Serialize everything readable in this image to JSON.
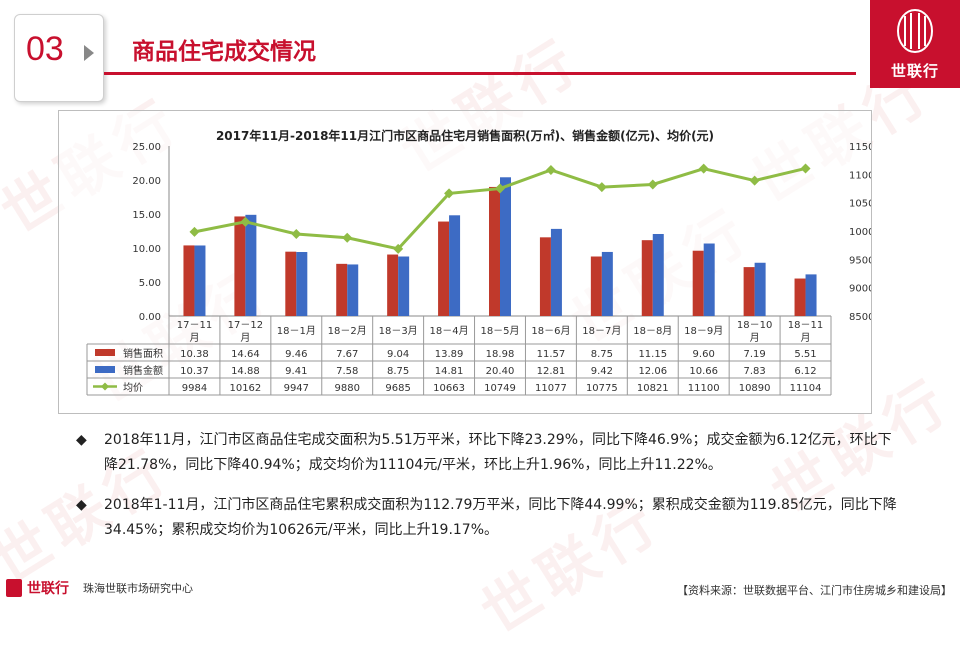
{
  "header": {
    "section_number": "03",
    "title": "商品住宅成交情况",
    "brand": "世联行",
    "watermark": "世联行"
  },
  "chart_data": {
    "type": "bar",
    "title": "2017年11月-2018年11月江门市区商品住宅月销售面积(万㎡)、销售金额(亿元)、均价(元)",
    "categories": [
      "17－11\n月",
      "17－12\n月",
      "18－1月",
      "18－2月",
      "18－3月",
      "18－4月",
      "18－5月",
      "18－6月",
      "18－7月",
      "18－8月",
      "18－9月",
      "18－10\n月",
      "18－11\n月"
    ],
    "ylim": [
      0,
      25
    ],
    "y2lim": [
      8500,
      11500
    ],
    "yticks": [
      "0.00",
      "5.00",
      "10.00",
      "15.00",
      "20.00",
      "25.00"
    ],
    "y2ticks": [
      "8500",
      "9000",
      "9500",
      "10000",
      "10500",
      "11000",
      "11500"
    ],
    "grid": false,
    "series": [
      {
        "name": "销售面积",
        "type": "bar",
        "axis": "left",
        "color": "#c0392b",
        "values": [
          10.38,
          14.64,
          9.46,
          7.67,
          9.04,
          13.89,
          18.98,
          11.57,
          8.75,
          11.15,
          9.6,
          7.19,
          5.51
        ],
        "labels": [
          "10.38",
          "14.64",
          "9.46",
          "7.67",
          "9.04",
          "13.89",
          "18.98",
          "11.57",
          "8.75",
          "11.15",
          "9.60",
          "7.19",
          "5.51"
        ]
      },
      {
        "name": "销售金额",
        "type": "bar",
        "axis": "left",
        "color": "#3d6bc4",
        "values": [
          10.37,
          14.88,
          9.41,
          7.58,
          8.75,
          14.81,
          20.4,
          12.81,
          9.42,
          12.06,
          10.66,
          7.83,
          6.12
        ],
        "labels": [
          "10.37",
          "14.88",
          "9.41",
          "7.58",
          "8.75",
          "14.81",
          "20.40",
          "12.81",
          "9.42",
          "12.06",
          "10.66",
          "7.83",
          "6.12"
        ]
      },
      {
        "name": "均价",
        "type": "line",
        "axis": "right",
        "color": "#8fbc45",
        "values": [
          9984,
          10162,
          9947,
          9880,
          9685,
          10663,
          10749,
          11077,
          10775,
          10821,
          11100,
          10890,
          11104
        ],
        "labels": [
          "9984",
          "10162",
          "9947",
          "9880",
          "9685",
          "10663",
          "10749",
          "11077",
          "10775",
          "10821",
          "11100",
          "10890",
          "11104"
        ]
      }
    ]
  },
  "bullets": [
    {
      "mark": "◆",
      "text": "2018年11月，江门市区商品住宅成交面积为5.51万平米，环比下降23.29%，同比下降46.9%；成交金额为6.12亿元，环比下降21.78%，同比下降40.94%；成交均价为11104元/平米，环比上升1.96%，同比上升11.22%。"
    },
    {
      "mark": "◆",
      "text": "2018年1-11月，江门市区商品住宅累积成交面积为112.79万平米，同比下降44.99%；累积成交金额为119.85亿元，同比下降34.45%；累积成交均价为10626元/平米，同比上升19.17%。"
    }
  ],
  "footer": {
    "brand": "世联行",
    "org": "珠海世联市场研究中心",
    "source": "【资料来源：世联数据平台、江门市住房城乡和建设局】"
  },
  "colors": {
    "accent": "#c8102e"
  }
}
